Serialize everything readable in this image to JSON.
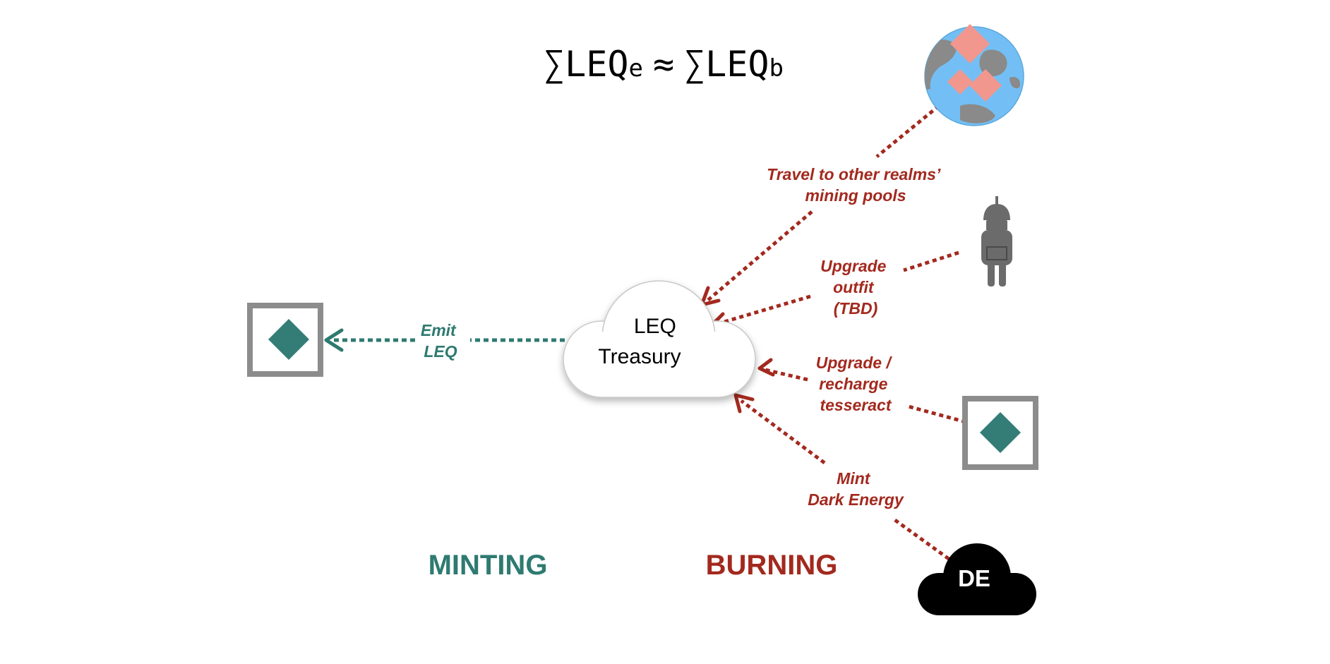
{
  "formula": {
    "sigma": "∑",
    "left_base": "LEQ",
    "left_sub": "e",
    "approx": "≈",
    "right_base": "LEQ",
    "right_sub": "b"
  },
  "treasury": {
    "line1": "LEQ",
    "line2": "Treasury"
  },
  "mint_edge": {
    "line1": "Emit",
    "line2": "LEQ"
  },
  "burn_edges": {
    "travel": {
      "line1": "Travel to other realms’",
      "line2": "mining pools"
    },
    "outfit": {
      "line1": "Upgrade",
      "line2": "outfit",
      "line3": "(TBD)"
    },
    "tesseract": {
      "line1": "Upgrade /",
      "line2": "recharge",
      "line3": "tesseract"
    },
    "dark_energy": {
      "line1": "Mint",
      "line2": "Dark Energy"
    }
  },
  "dark_energy_cloud": {
    "label": "DE"
  },
  "sections": {
    "minting": "MINTING",
    "burning": "BURNING"
  },
  "colors": {
    "mint": "#2e7a70",
    "burn": "#a3291e",
    "tesseract_frame": "#8c8c8c",
    "tesseract_gem": "#347d77",
    "globe_ocean": "#73bff5",
    "globe_land": "#8a8a8a",
    "globe_gem": "#f1978d",
    "avatar": "#6b6b6b",
    "de_cloud": "#000000"
  },
  "icons": {
    "mint_target": "tesseract-icon",
    "travel_source": "globe-icon",
    "outfit_source": "avatar-icon",
    "tesseract_source": "tesseract-icon",
    "dark_energy_source": "dark-energy-cloud-icon"
  }
}
